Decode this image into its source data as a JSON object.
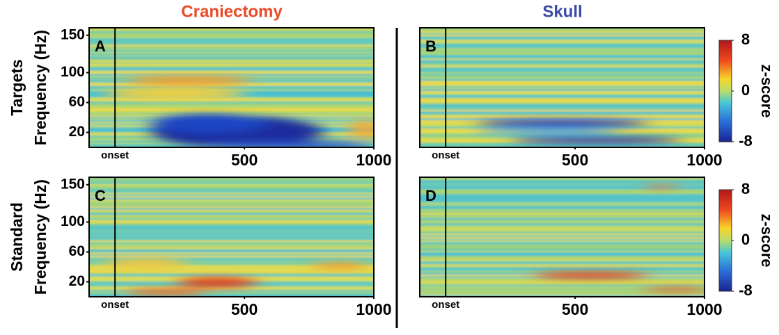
{
  "column_titles": [
    {
      "text": "Craniectomy",
      "color": "#ea4a26"
    },
    {
      "text": "Skull",
      "color": "#3b4aa6"
    }
  ],
  "chart_data": [
    {
      "type": "heatmap",
      "panel": "A",
      "ylabel": [
        "Targets",
        "Frequency (Hz)"
      ],
      "xlim": [
        -100,
        1000
      ],
      "ylim": [
        0,
        160
      ],
      "xticks": [
        {
          "value": 0,
          "label": "onset"
        },
        500,
        1000
      ],
      "yticks": [
        20,
        60,
        100,
        150
      ]
    },
    {
      "type": "heatmap",
      "panel": "B",
      "xlim": [
        -100,
        1000
      ],
      "ylim": [
        0,
        160
      ],
      "xticks": [
        {
          "value": 0,
          "label": "onset"
        },
        500,
        1000
      ],
      "colorbar": {
        "label": "z-score",
        "lim": [
          -8,
          8
        ],
        "ticks": [
          8,
          0,
          -8
        ]
      }
    },
    {
      "type": "heatmap",
      "panel": "C",
      "ylabel": [
        "Standard",
        "Frequency (Hz)"
      ],
      "xlim": [
        -100,
        1000
      ],
      "ylim": [
        0,
        160
      ],
      "xticks": [
        {
          "value": 0,
          "label": "onset"
        },
        500,
        1000
      ],
      "yticks": [
        20,
        60,
        100,
        150
      ]
    },
    {
      "type": "heatmap",
      "panel": "D",
      "xlim": [
        -100,
        1000
      ],
      "ylim": [
        0,
        160
      ],
      "xticks": [
        {
          "value": 0,
          "label": "onset"
        },
        500,
        1000
      ],
      "colorbar": {
        "label": "z-score",
        "lim": [
          -8,
          8
        ],
        "ticks": [
          8,
          0,
          -8
        ]
      }
    }
  ]
}
